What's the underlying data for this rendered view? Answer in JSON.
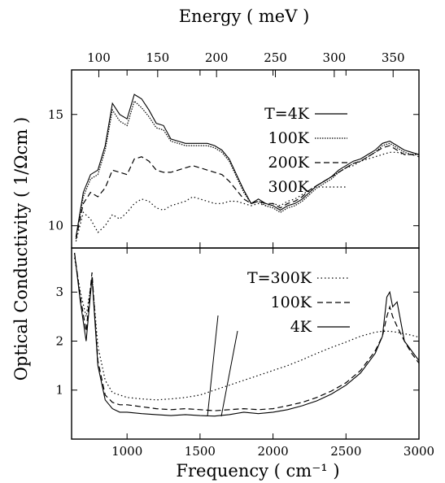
{
  "chart_data": [
    {
      "type": "line",
      "panel": "top",
      "xlabel": "Frequency ( cm⁻¹ )",
      "ylabel": "Optical Conductivity ( 1/Ωcm )",
      "top_axis_label": "Energy ( meV )",
      "xlim": [
        620,
        3000
      ],
      "ylim": [
        9,
        17
      ],
      "x_ticks": [
        1000,
        1500,
        2000,
        2500,
        3000
      ],
      "y_ticks": [
        10,
        15
      ],
      "top_ticks": [
        100,
        150,
        200,
        250,
        300,
        350
      ],
      "legend_position": "top-right",
      "series": [
        {
          "name": "T=4K",
          "dash": "solid",
          "x": [
            650,
            700,
            750,
            800,
            850,
            900,
            950,
            1000,
            1050,
            1100,
            1150,
            1200,
            1250,
            1300,
            1350,
            1400,
            1450,
            1500,
            1550,
            1600,
            1650,
            1700,
            1750,
            1800,
            1850,
            1900,
            1950,
            2000,
            2050,
            2100,
            2150,
            2200,
            2250,
            2300,
            2350,
            2400,
            2450,
            2500,
            2550,
            2600,
            2650,
            2700,
            2750,
            2800,
            2850,
            2900,
            2950,
            3000
          ],
          "y": [
            9.5,
            11.5,
            12.3,
            12.5,
            13.6,
            15.5,
            15.0,
            14.8,
            15.9,
            15.7,
            15.2,
            14.6,
            14.5,
            13.9,
            13.8,
            13.7,
            13.7,
            13.7,
            13.7,
            13.6,
            13.4,
            13.0,
            12.3,
            11.6,
            11.0,
            11.2,
            11.0,
            10.9,
            10.7,
            10.9,
            11.0,
            11.2,
            11.5,
            11.8,
            12.0,
            12.2,
            12.5,
            12.7,
            12.9,
            13.0,
            13.2,
            13.4,
            13.7,
            13.8,
            13.6,
            13.4,
            13.3,
            13.2
          ]
        },
        {
          "name": "100K",
          "dash": "dot-fine",
          "x": [
            650,
            700,
            750,
            800,
            850,
            900,
            950,
            1000,
            1050,
            1100,
            1150,
            1200,
            1250,
            1300,
            1350,
            1400,
            1450,
            1500,
            1550,
            1600,
            1650,
            1700,
            1750,
            1800,
            1850,
            1900,
            1950,
            2000,
            2050,
            2100,
            2150,
            2200,
            2250,
            2300,
            2350,
            2400,
            2450,
            2500,
            2550,
            2600,
            2650,
            2700,
            2750,
            2800,
            2850,
            2900,
            2950,
            3000
          ],
          "y": [
            9.5,
            11.3,
            12.1,
            12.3,
            13.4,
            15.2,
            14.7,
            14.5,
            15.6,
            15.3,
            14.9,
            14.4,
            14.3,
            13.8,
            13.7,
            13.6,
            13.6,
            13.6,
            13.6,
            13.5,
            13.3,
            12.9,
            12.2,
            11.5,
            11.0,
            11.1,
            10.9,
            10.8,
            10.6,
            10.8,
            10.9,
            11.1,
            11.4,
            11.7,
            11.9,
            12.1,
            12.4,
            12.6,
            12.8,
            12.9,
            13.1,
            13.3,
            13.6,
            13.7,
            13.5,
            13.3,
            13.2,
            13.2
          ]
        },
        {
          "name": "200K",
          "dash": "dashed",
          "x": [
            650,
            700,
            750,
            800,
            850,
            900,
            950,
            1000,
            1050,
            1100,
            1150,
            1200,
            1250,
            1300,
            1350,
            1400,
            1450,
            1500,
            1550,
            1600,
            1650,
            1700,
            1750,
            1800,
            1850,
            1900,
            1950,
            2000,
            2050,
            2100,
            2150,
            2200,
            2250,
            2300,
            2350,
            2400,
            2450,
            2500,
            2550,
            2600,
            2650,
            2700,
            2750,
            2800,
            2850,
            2900,
            2950,
            3000
          ],
          "y": [
            9.4,
            11.0,
            11.5,
            11.3,
            11.7,
            12.5,
            12.4,
            12.3,
            13.0,
            13.1,
            12.9,
            12.5,
            12.4,
            12.4,
            12.5,
            12.6,
            12.7,
            12.6,
            12.5,
            12.4,
            12.3,
            12.0,
            11.6,
            11.2,
            11.0,
            11.1,
            11.0,
            11.0,
            10.8,
            11.0,
            11.1,
            11.3,
            11.6,
            11.8,
            12.0,
            12.2,
            12.4,
            12.6,
            12.8,
            12.9,
            13.1,
            13.3,
            13.5,
            13.6,
            13.4,
            13.2,
            13.2,
            13.1
          ]
        },
        {
          "name": "300K",
          "dash": "dotted",
          "x": [
            650,
            700,
            750,
            800,
            850,
            900,
            950,
            1000,
            1050,
            1100,
            1150,
            1200,
            1250,
            1300,
            1350,
            1400,
            1450,
            1500,
            1550,
            1600,
            1650,
            1700,
            1750,
            1800,
            1850,
            1900,
            1950,
            2000,
            2050,
            2100,
            2150,
            2200,
            2250,
            2300,
            2350,
            2400,
            2450,
            2500,
            2550,
            2600,
            2650,
            2700,
            2750,
            2800,
            2850,
            2900,
            2950,
            3000
          ],
          "y": [
            9.3,
            10.6,
            10.3,
            9.7,
            10.0,
            10.5,
            10.3,
            10.6,
            11.0,
            11.2,
            11.1,
            10.8,
            10.7,
            10.9,
            11.0,
            11.1,
            11.3,
            11.2,
            11.1,
            11.0,
            11.0,
            11.1,
            11.1,
            11.0,
            10.9,
            11.0,
            10.9,
            11.0,
            10.9,
            11.1,
            11.2,
            11.4,
            11.6,
            11.8,
            12.0,
            12.2,
            12.4,
            12.6,
            12.7,
            12.9,
            13.0,
            13.1,
            13.2,
            13.3,
            13.3,
            13.2,
            13.2,
            13.2
          ]
        }
      ]
    },
    {
      "type": "line",
      "panel": "bottom",
      "xlim": [
        620,
        3000
      ],
      "ylim": [
        0,
        3.9
      ],
      "x_ticks": [
        1000,
        1500,
        2000,
        2500,
        3000
      ],
      "y_ticks": [
        1,
        2,
        3
      ],
      "legend_position": "top-right",
      "series": [
        {
          "name": "T=300K",
          "dash": "dotted",
          "x": [
            640,
            680,
            720,
            760,
            800,
            850,
            900,
            950,
            1000,
            1100,
            1200,
            1300,
            1400,
            1500,
            1600,
            1700,
            1800,
            1900,
            2000,
            2100,
            2200,
            2300,
            2400,
            2500,
            2600,
            2700,
            2750,
            2800,
            2850,
            2900,
            2950,
            3000
          ],
          "y": [
            3.7,
            3.0,
            2.5,
            3.3,
            1.9,
            1.2,
            0.95,
            0.9,
            0.85,
            0.82,
            0.8,
            0.82,
            0.85,
            0.9,
            1.0,
            1.1,
            1.2,
            1.3,
            1.4,
            1.5,
            1.62,
            1.75,
            1.87,
            1.98,
            2.1,
            2.18,
            2.2,
            2.2,
            2.18,
            2.15,
            2.12,
            2.08
          ]
        },
        {
          "name": "100K",
          "dash": "dashed",
          "x": [
            640,
            680,
            720,
            760,
            800,
            850,
            900,
            950,
            1000,
            1100,
            1200,
            1300,
            1400,
            1500,
            1600,
            1700,
            1800,
            1900,
            2000,
            2100,
            2200,
            2300,
            2400,
            2500,
            2600,
            2700,
            2750,
            2780,
            2800,
            2820,
            2850,
            2900,
            2950,
            3000
          ],
          "y": [
            3.8,
            2.9,
            2.2,
            3.4,
            1.6,
            0.9,
            0.75,
            0.7,
            0.7,
            0.66,
            0.62,
            0.6,
            0.62,
            0.6,
            0.58,
            0.6,
            0.62,
            0.6,
            0.62,
            0.68,
            0.75,
            0.85,
            0.98,
            1.15,
            1.4,
            1.8,
            2.1,
            2.5,
            2.7,
            2.5,
            2.3,
            2.0,
            1.75,
            1.55
          ]
        },
        {
          "name": "4K",
          "dash": "solid",
          "x": [
            640,
            680,
            720,
            760,
            800,
            850,
            900,
            950,
            1000,
            1100,
            1200,
            1300,
            1400,
            1500,
            1600,
            1700,
            1800,
            1900,
            2000,
            2100,
            2200,
            2300,
            2400,
            2500,
            2600,
            2700,
            2750,
            2780,
            2800,
            2820,
            2850,
            2900,
            2950,
            3000
          ],
          "y": [
            3.8,
            2.8,
            2.0,
            3.3,
            1.5,
            0.8,
            0.62,
            0.55,
            0.55,
            0.52,
            0.5,
            0.48,
            0.5,
            0.48,
            0.47,
            0.5,
            0.55,
            0.52,
            0.55,
            0.6,
            0.68,
            0.78,
            0.92,
            1.1,
            1.35,
            1.75,
            2.1,
            2.9,
            3.0,
            2.7,
            2.8,
            2.0,
            1.8,
            1.6
          ]
        }
      ]
    }
  ]
}
